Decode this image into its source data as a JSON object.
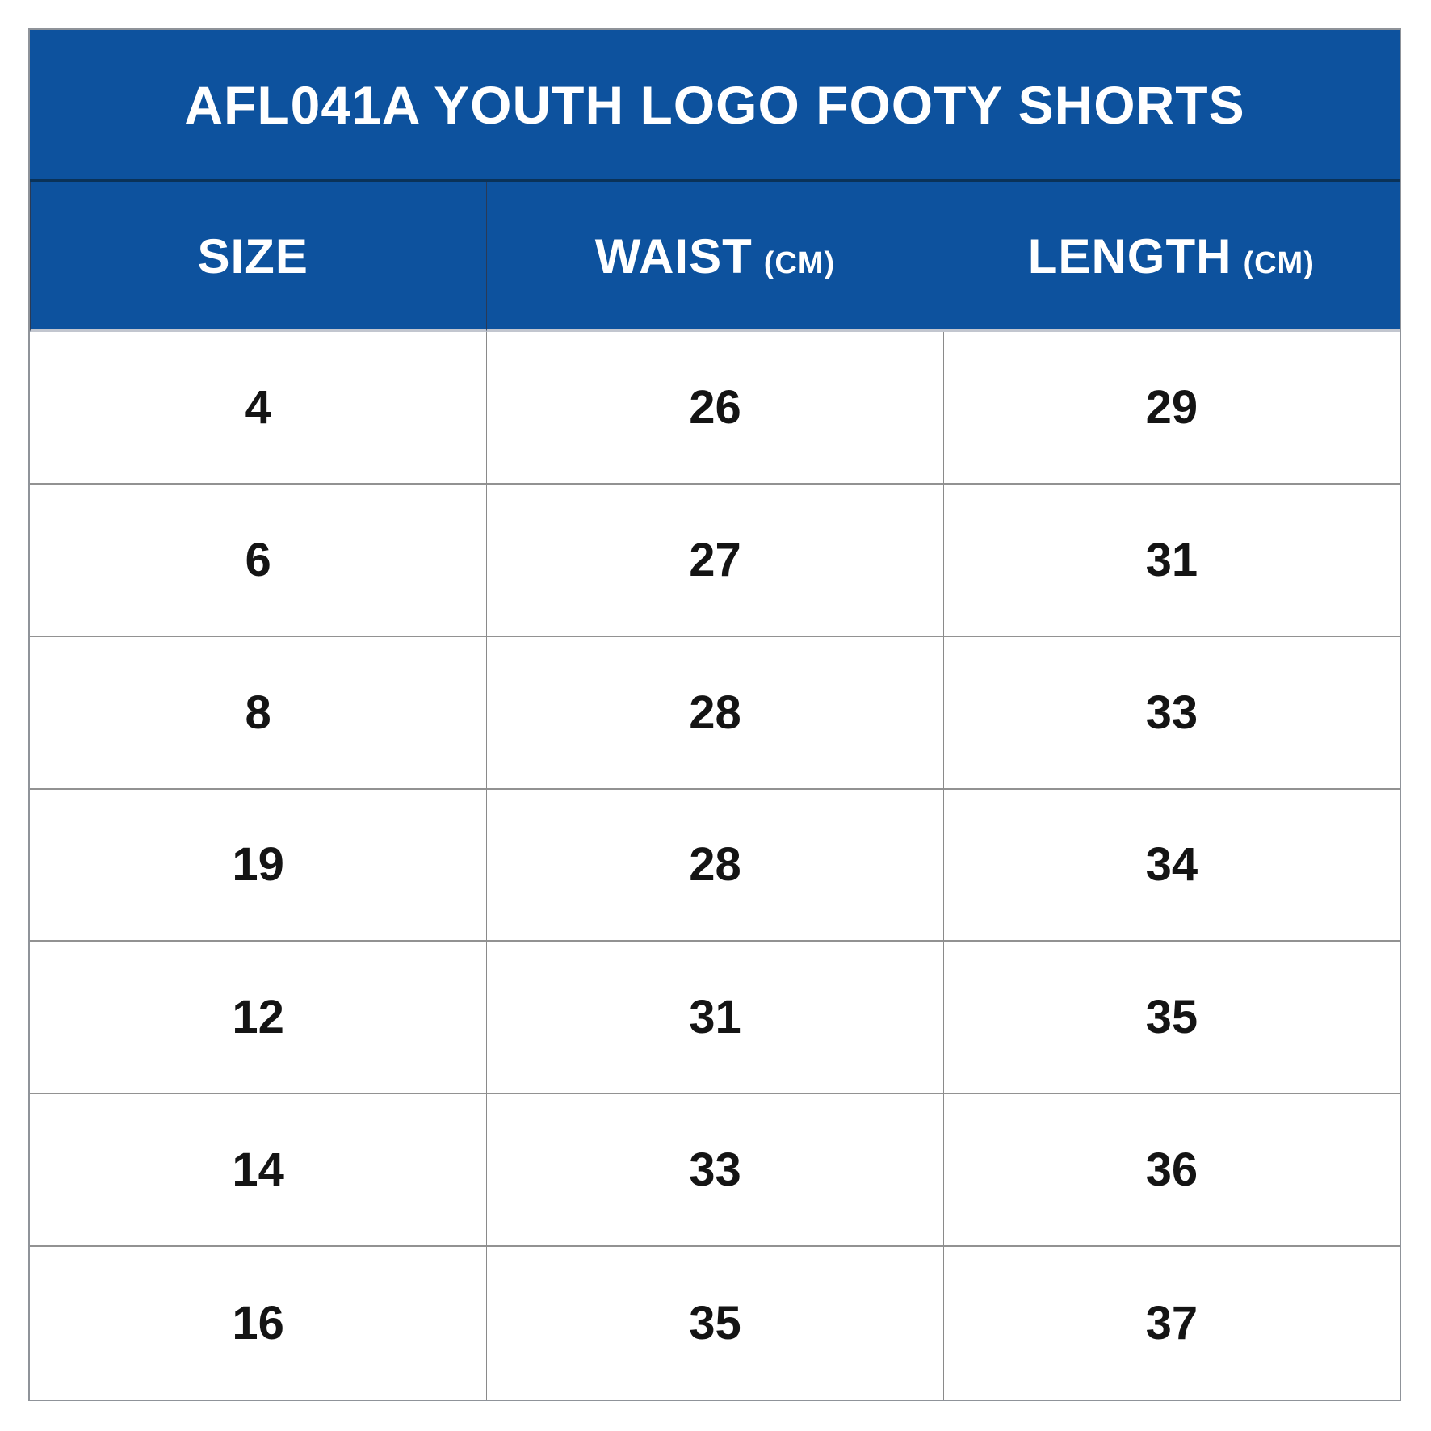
{
  "chart_data": {
    "type": "table",
    "title": "AFL041A YOUTH LOGO FOOTY SHORTS",
    "columns": [
      "SIZE",
      "WAIST (CM)",
      "LENGTH (CM)"
    ],
    "rows": [
      [
        4,
        26,
        29
      ],
      [
        6,
        27,
        31
      ],
      [
        8,
        28,
        33
      ],
      [
        19,
        28,
        34
      ],
      [
        12,
        31,
        35
      ],
      [
        14,
        33,
        36
      ],
      [
        16,
        35,
        37
      ]
    ]
  },
  "header": {
    "title": "AFL041A YOUTH LOGO FOOTY SHORTS"
  },
  "table": {
    "columns": [
      {
        "label": "SIZE",
        "unit": ""
      },
      {
        "label": "WAIST",
        "unit": "(CM)"
      },
      {
        "label": "LENGTH",
        "unit": "(CM)"
      }
    ],
    "rows": [
      {
        "size": "4",
        "waist": "26",
        "length": "29"
      },
      {
        "size": "6",
        "waist": "27",
        "length": "31"
      },
      {
        "size": "8",
        "waist": "28",
        "length": "33"
      },
      {
        "size": "19",
        "waist": "28",
        "length": "34"
      },
      {
        "size": "12",
        "waist": "31",
        "length": "35"
      },
      {
        "size": "14",
        "waist": "33",
        "length": "36"
      },
      {
        "size": "16",
        "waist": "35",
        "length": "37"
      }
    ]
  },
  "colors": {
    "header_blue": "#0d529e",
    "header_text": "#ffffff",
    "body_text": "#141414"
  }
}
